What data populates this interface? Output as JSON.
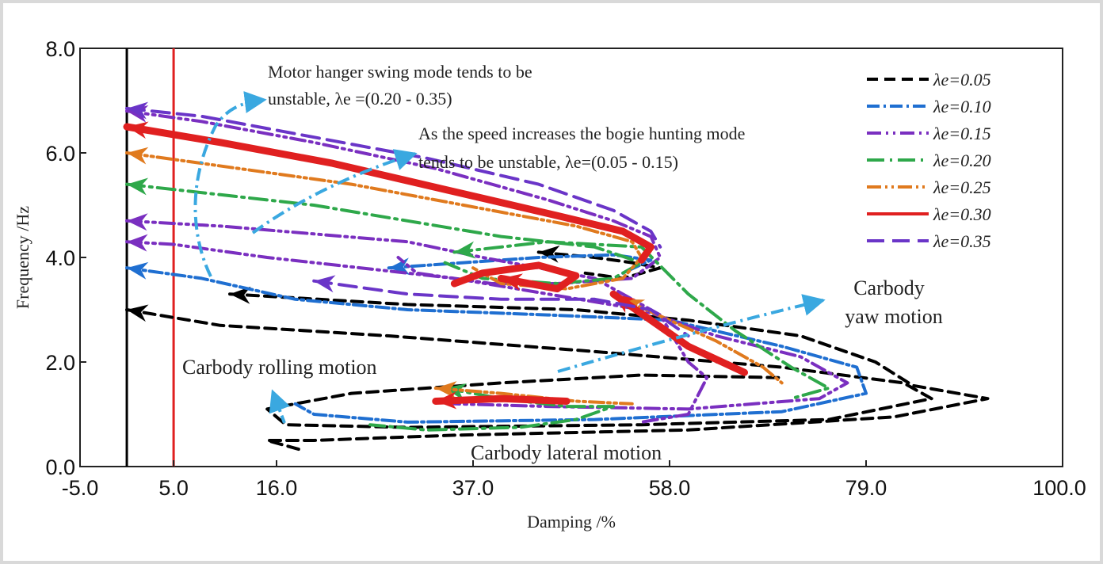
{
  "chart_data": {
    "type": "line",
    "title": "",
    "xlabel": "Damping /%",
    "ylabel": "Frequency /Hz",
    "xlim": [
      -5.0,
      100.0
    ],
    "ylim": [
      0.0,
      8.0
    ],
    "x_ticks": [
      {
        "value": -5.0,
        "label": "-5.0",
        "color": "#111111"
      },
      {
        "value": 5.0,
        "label": "5.0",
        "color": "#e02020"
      },
      {
        "value": 16.0,
        "label": "16.0",
        "color": "#111111"
      },
      {
        "value": 37.0,
        "label": "37.0",
        "color": "#111111"
      },
      {
        "value": 58.0,
        "label": "58.0",
        "color": "#111111"
      },
      {
        "value": 79.0,
        "label": "79.0",
        "color": "#111111"
      },
      {
        "value": 100.0,
        "label": "100.0",
        "color": "#111111"
      }
    ],
    "y_ticks": [
      {
        "value": 0.0,
        "label": "0.0"
      },
      {
        "value": 2.0,
        "label": "2.0"
      },
      {
        "value": 4.0,
        "label": "4.0"
      },
      {
        "value": 6.0,
        "label": "6.0"
      },
      {
        "value": 8.0,
        "label": "8.0"
      }
    ],
    "grid": false,
    "legend_position": "top-right",
    "reference_lines": [
      {
        "x": 0.0,
        "color": "#000000"
      },
      {
        "x": 5.0,
        "color": "#e02020"
      }
    ],
    "series": [
      {
        "name": "λe=0.05",
        "color": "#000000",
        "dash": "14,8",
        "width": 4,
        "branches": [
          [
            [
              0,
              3.0
            ],
            [
              10,
              2.7
            ],
            [
              28,
              2.5
            ],
            [
              50,
              2.2
            ],
            [
              70,
              1.9
            ],
            [
              83,
              1.6
            ],
            [
              86,
              1.3
            ],
            [
              75,
              0.9
            ],
            [
              55,
              0.8
            ],
            [
              30,
              0.75
            ],
            [
              17,
              0.8
            ],
            [
              15,
              1.1
            ],
            [
              24,
              1.4
            ],
            [
              40,
              1.6
            ],
            [
              55,
              1.75
            ],
            [
              70,
              1.7
            ]
          ],
          [
            [
              11,
              3.3
            ],
            [
              30,
              3.1
            ],
            [
              48,
              3.0
            ],
            [
              60,
              2.8
            ],
            [
              72,
              2.5
            ],
            [
              80,
              2.0
            ],
            [
              84,
              1.55
            ],
            [
              92,
              1.3
            ],
            [
              82,
              0.95
            ],
            [
              60,
              0.7
            ],
            [
              35,
              0.6
            ],
            [
              20,
              0.5
            ],
            [
              15,
              0.5
            ],
            [
              19,
              0.3
            ]
          ],
          [
            [
              44,
              4.1
            ],
            [
              50,
              4.0
            ],
            [
              54,
              3.9
            ],
            [
              57,
              3.8
            ],
            [
              53,
              3.6
            ],
            [
              49,
              3.7
            ]
          ]
        ]
      },
      {
        "name": "λe=0.10",
        "color": "#1f6fd1",
        "dash": "16,5,3,5",
        "width": 4,
        "branches": [
          [
            [
              0,
              3.8
            ],
            [
              8,
              3.6
            ],
            [
              18,
              3.2
            ],
            [
              30,
              3.0
            ],
            [
              45,
              2.9
            ],
            [
              58,
              2.8
            ],
            [
              70,
              2.3
            ],
            [
              78,
              1.9
            ],
            [
              79,
              1.4
            ],
            [
              70,
              1.05
            ],
            [
              50,
              0.9
            ],
            [
              30,
              0.85
            ],
            [
              20,
              1.0
            ],
            [
              18,
              1.2
            ]
          ],
          [
            [
              28,
              3.8
            ],
            [
              36,
              3.9
            ],
            [
              44,
              4.0
            ],
            [
              52,
              4.05
            ],
            [
              56,
              3.95
            ],
            [
              53,
              3.7
            ]
          ]
        ]
      },
      {
        "name": "λe=0.15",
        "color": "#7a2fc0",
        "dash": "18,6,3,6,3,6",
        "width": 4,
        "branches": [
          [
            [
              0,
              4.3
            ],
            [
              5,
              4.25
            ],
            [
              15,
              4.0
            ],
            [
              25,
              3.8
            ],
            [
              35,
              3.6
            ],
            [
              45,
              3.3
            ],
            [
              55,
              3.0
            ],
            [
              63,
              2.5
            ],
            [
              72,
              2.1
            ],
            [
              77,
              1.6
            ],
            [
              74,
              1.3
            ],
            [
              60,
              1.1
            ],
            [
              45,
              1.15
            ],
            [
              35,
              1.2
            ]
          ],
          [
            [
              0,
              4.7
            ],
            [
              10,
              4.6
            ],
            [
              20,
              4.45
            ],
            [
              30,
              4.3
            ],
            [
              38,
              4.0
            ],
            [
              44,
              3.8
            ],
            [
              50,
              3.6
            ],
            [
              57,
              2.9
            ],
            [
              60,
              2.0
            ],
            [
              62,
              1.7
            ],
            [
              60,
              1.0
            ],
            [
              55,
              0.85
            ]
          ],
          [
            [
              0,
              6.8
            ],
            [
              8,
              6.6
            ],
            [
              20,
              6.2
            ],
            [
              33,
              5.7
            ],
            [
              45,
              5.1
            ],
            [
              52,
              4.7
            ],
            [
              56,
              4.4
            ],
            [
              57,
              4.0
            ],
            [
              54,
              3.6
            ],
            [
              46,
              3.5
            ],
            [
              39,
              3.5
            ],
            [
              31,
              3.7
            ],
            [
              29,
              4.0
            ]
          ]
        ]
      },
      {
        "name": "λe=0.20",
        "color": "#2ea84a",
        "dash": "22,7,3,7",
        "width": 4,
        "branches": [
          [
            [
              0,
              5.4
            ],
            [
              10,
              5.2
            ],
            [
              20,
              5.0
            ],
            [
              30,
              4.7
            ],
            [
              40,
              4.4
            ],
            [
              50,
              4.2
            ],
            [
              55,
              3.9
            ],
            [
              52,
              3.6
            ],
            [
              46,
              3.5
            ],
            [
              38,
              3.6
            ],
            [
              34,
              3.9
            ]
          ],
          [
            [
              35,
              4.1
            ],
            [
              45,
              4.3
            ],
            [
              55,
              4.2
            ],
            [
              60,
              3.3
            ],
            [
              65,
              2.6
            ],
            [
              71,
              1.9
            ],
            [
              75,
              1.5
            ],
            [
              71,
              1.3
            ]
          ],
          [
            [
              34,
              1.5
            ],
            [
              40,
              1.3
            ],
            [
              47,
              1.15
            ],
            [
              52,
              1.15
            ],
            [
              48,
              0.9
            ],
            [
              42,
              0.75
            ],
            [
              32,
              0.7
            ],
            [
              26,
              0.8
            ]
          ]
        ]
      },
      {
        "name": "λe=0.25",
        "color": "#e07a1e",
        "dash": "18,5,3,5,3,5",
        "width": 4,
        "branches": [
          [
            [
              0,
              6.0
            ],
            [
              12,
              5.7
            ],
            [
              24,
              5.4
            ],
            [
              36,
              5.0
            ],
            [
              48,
              4.6
            ],
            [
              54,
              4.3
            ],
            [
              55,
              4.0
            ],
            [
              53,
              3.6
            ],
            [
              47,
              3.4
            ],
            [
              40,
              3.5
            ],
            [
              37,
              3.8
            ]
          ],
          [
            [
              53,
              3.2
            ],
            [
              58,
              2.8
            ],
            [
              63,
              2.4
            ],
            [
              68,
              1.9
            ],
            [
              70,
              1.6
            ]
          ],
          [
            [
              33,
              1.5
            ],
            [
              40,
              1.4
            ],
            [
              48,
              1.25
            ],
            [
              54,
              1.2
            ]
          ]
        ]
      },
      {
        "name": "λe=0.30",
        "color": "#e02020",
        "dash": "",
        "width": 9,
        "branches": [
          [
            [
              0,
              6.5
            ],
            [
              10,
              6.2
            ],
            [
              22,
              5.8
            ],
            [
              34,
              5.3
            ],
            [
              46,
              4.8
            ],
            [
              53,
              4.5
            ],
            [
              56,
              4.2
            ],
            [
              55,
              3.95
            ]
          ],
          [
            [
              40,
              3.6
            ],
            [
              46,
              3.4
            ],
            [
              48,
              3.65
            ],
            [
              44,
              3.85
            ],
            [
              38,
              3.7
            ],
            [
              35,
              3.5
            ]
          ],
          [
            [
              52,
              3.3
            ],
            [
              56,
              2.8
            ],
            [
              60,
              2.3
            ],
            [
              66,
              1.8
            ]
          ],
          [
            [
              33,
              1.25
            ],
            [
              40,
              1.3
            ],
            [
              47,
              1.25
            ]
          ]
        ]
      },
      {
        "name": "λe=0.35",
        "color": "#6a35c8",
        "dash": "22,10",
        "width": 4,
        "branches": [
          [
            [
              0,
              6.85
            ],
            [
              8,
              6.7
            ],
            [
              20,
              6.3
            ],
            [
              32,
              5.9
            ],
            [
              44,
              5.4
            ],
            [
              52,
              4.9
            ],
            [
              56,
              4.5
            ],
            [
              57,
              4.2
            ]
          ],
          [
            [
              20,
              3.55
            ],
            [
              30,
              3.3
            ],
            [
              40,
              3.2
            ],
            [
              50,
              3.2
            ],
            [
              56,
              3.0
            ],
            [
              60,
              2.5
            ]
          ]
        ]
      }
    ],
    "annotations": [
      {
        "lines": [
          "Motor hanger swing mode tends to be",
          "unstable, λe =(0.20 - 0.35)"
        ]
      },
      {
        "lines": [
          "As the speed increases the bogie hunting mode",
          "tends to be unstable, λe=(0.05 - 0.15)"
        ]
      },
      {
        "lines": [
          "Carbody",
          "yaw motion"
        ]
      },
      {
        "lines": [
          "Carbody rolling motion"
        ]
      },
      {
        "lines": [
          "Carbody lateral motion"
        ]
      }
    ]
  }
}
